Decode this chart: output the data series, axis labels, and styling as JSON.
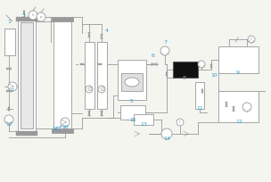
{
  "bg_color": "#f5f5f0",
  "line_color": "#999999",
  "label_color": "#3399cc",
  "figsize": [
    3.0,
    2.0
  ],
  "dpi": 100,
  "lw": 0.6
}
